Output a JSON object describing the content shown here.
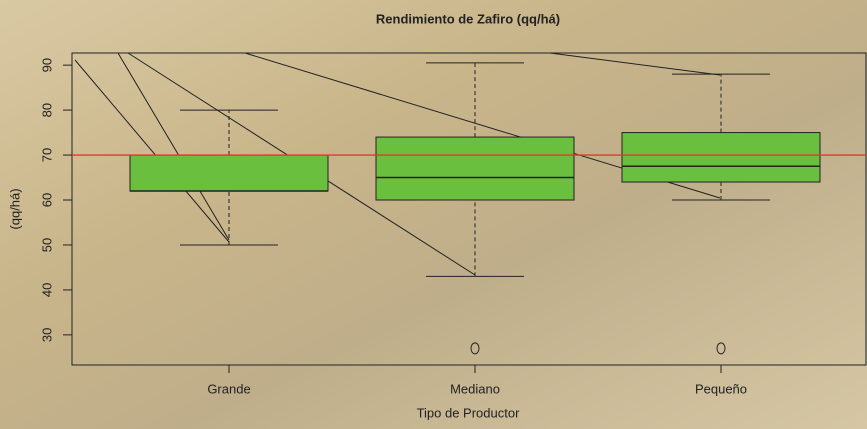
{
  "chart_data": {
    "type": "boxplot",
    "title": "Rendimiento de Zafiro (qq/há)",
    "x_label": "Tipo de Productor",
    "y_label": "(qq/há)",
    "categories": [
      "Grande",
      "Mediano",
      "Pequeño"
    ],
    "boxes": [
      {
        "whislo": 50,
        "q1": 62,
        "med": 62,
        "q3": 70,
        "whishi": 80,
        "outliers": []
      },
      {
        "whislo": 43,
        "q1": 60,
        "med": 65,
        "q3": 74,
        "whishi": 90.5,
        "outliers": [
          27
        ]
      },
      {
        "whislo": 60,
        "q1": 64,
        "med": 67.5,
        "q3": 75,
        "whishi": 88,
        "outliers": [
          27
        ]
      }
    ],
    "color": "#6abf3f",
    "reference_line": {
      "value": 70,
      "color": "#e8362a"
    },
    "ylim": [
      23.3,
      92.7
    ],
    "yticks": [
      30,
      40,
      50,
      60,
      70,
      80,
      90
    ]
  }
}
